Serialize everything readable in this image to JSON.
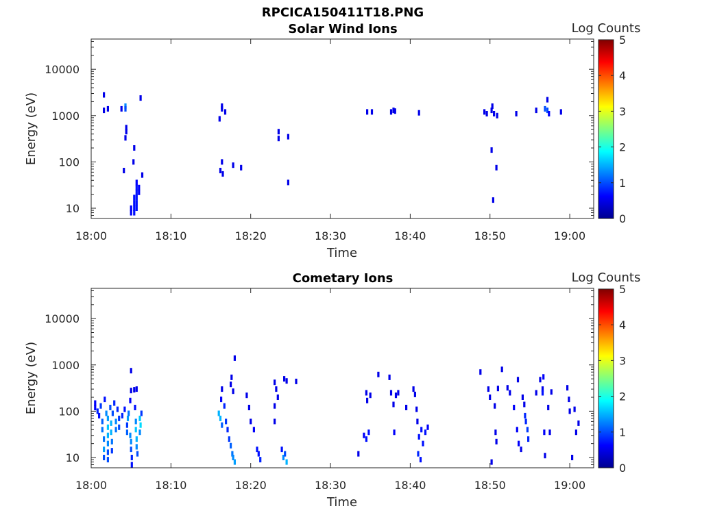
{
  "figure_title": "RPCICA150411T18.PNG",
  "chart_data": [
    {
      "type": "heatmap",
      "title": "Solar Wind Ions",
      "xlabel": "Time",
      "ylabel": "Energy (eV)",
      "colorbar_label": "Log Counts",
      "x_ticks": [
        "18:00",
        "18:10",
        "18:20",
        "18:30",
        "18:40",
        "18:50",
        "19:00"
      ],
      "xlim_minutes": [
        0,
        63
      ],
      "y_scale": "log",
      "ylim": [
        6,
        45000
      ],
      "y_ticks": [
        "10",
        "100",
        "1000",
        "10000"
      ],
      "clim": [
        0,
        5
      ],
      "colorbar_ticks": [
        "0",
        "1",
        "2",
        "3",
        "4",
        "5"
      ],
      "colormap": [
        "#00008f",
        "#0000ff",
        "#00ffff",
        "#ffff00",
        "#ff0000",
        "#800000"
      ],
      "grid": false,
      "points": [
        [
          1.6,
          2800,
          0.5
        ],
        [
          1.6,
          1300,
          0.5
        ],
        [
          2.1,
          1400,
          0.5
        ],
        [
          3.8,
          1400,
          0.5
        ],
        [
          4.3,
          1600,
          1.3
        ],
        [
          4.3,
          1400,
          1.0
        ],
        [
          4.1,
          65,
          0.5
        ],
        [
          4.3,
          330,
          0.5
        ],
        [
          4.4,
          450,
          0.5
        ],
        [
          4.4,
          550,
          0.5
        ],
        [
          5.4,
          200,
          0.5
        ],
        [
          6.2,
          2400,
          0.5
        ],
        [
          5.3,
          100,
          0.5
        ],
        [
          5.0,
          8,
          0.6
        ],
        [
          5.0,
          10,
          0.6
        ],
        [
          5.4,
          8,
          0.7
        ],
        [
          5.4,
          10,
          0.7
        ],
        [
          5.4,
          13,
          0.7
        ],
        [
          5.4,
          17,
          0.7
        ],
        [
          5.7,
          10,
          0.7
        ],
        [
          5.7,
          13,
          0.7
        ],
        [
          5.7,
          17,
          0.7
        ],
        [
          5.7,
          22,
          0.7
        ],
        [
          5.7,
          28,
          0.7
        ],
        [
          5.7,
          36,
          0.6
        ],
        [
          6.0,
          22,
          0.6
        ],
        [
          6.0,
          28,
          0.6
        ],
        [
          6.4,
          52,
          0.5
        ],
        [
          16.1,
          850,
          0.5
        ],
        [
          16.4,
          1400,
          0.5
        ],
        [
          16.4,
          1600,
          0.5
        ],
        [
          16.8,
          1200,
          0.5
        ],
        [
          16.2,
          65,
          0.5
        ],
        [
          16.5,
          55,
          0.5
        ],
        [
          16.4,
          100,
          0.5
        ],
        [
          17.8,
          85,
          0.5
        ],
        [
          18.8,
          75,
          0.5
        ],
        [
          23.5,
          320,
          0.5
        ],
        [
          23.5,
          450,
          0.5
        ],
        [
          24.7,
          350,
          0.5
        ],
        [
          24.7,
          36,
          0.5
        ],
        [
          34.6,
          1200,
          0.5
        ],
        [
          35.2,
          1200,
          0.5
        ],
        [
          37.6,
          1200,
          0.5
        ],
        [
          37.9,
          1300,
          0.5
        ],
        [
          38.1,
          1250,
          0.5
        ],
        [
          41.1,
          1150,
          0.5
        ],
        [
          49.3,
          1200,
          0.5
        ],
        [
          49.6,
          1100,
          0.5
        ],
        [
          50.2,
          1300,
          0.5
        ],
        [
          50.5,
          1100,
          0.5
        ],
        [
          50.9,
          1000,
          0.5
        ],
        [
          50.3,
          1600,
          0.5
        ],
        [
          50.2,
          180,
          0.5
        ],
        [
          50.8,
          75,
          0.5
        ],
        [
          50.4,
          15,
          0.5
        ],
        [
          53.3,
          1100,
          0.5
        ],
        [
          55.8,
          1300,
          0.5
        ],
        [
          56.9,
          1400,
          1.0
        ],
        [
          57.2,
          1300,
          1.0
        ],
        [
          57.4,
          1100,
          0.6
        ],
        [
          57.2,
          2200,
          0.5
        ],
        [
          58.9,
          1200,
          0.5
        ]
      ]
    },
    {
      "type": "heatmap",
      "title": "Cometary Ions",
      "xlabel": "Time",
      "ylabel": "Energy (eV)",
      "colorbar_label": "Log Counts",
      "x_ticks": [
        "18:00",
        "18:10",
        "18:20",
        "18:30",
        "18:40",
        "18:50",
        "19:00"
      ],
      "xlim_minutes": [
        0,
        63
      ],
      "y_scale": "log",
      "ylim": [
        6,
        45000
      ],
      "y_ticks": [
        "10",
        "100",
        "1000",
        "10000"
      ],
      "clim": [
        0,
        5
      ],
      "colorbar_ticks": [
        "0",
        "1",
        "2",
        "3",
        "4",
        "5"
      ],
      "colormap": [
        "#00008f",
        "#0000ff",
        "#00ffff",
        "#ffff00",
        "#ff0000",
        "#800000"
      ],
      "grid": false,
      "points": [
        [
          0.5,
          150,
          0.6
        ],
        [
          0.5,
          120,
          0.6
        ],
        [
          0.8,
          100,
          0.8
        ],
        [
          1.0,
          80,
          0.7
        ],
        [
          1.2,
          130,
          0.9
        ],
        [
          1.4,
          60,
          1.1
        ],
        [
          1.4,
          40,
          1.2
        ],
        [
          1.6,
          25,
          1.2
        ],
        [
          1.6,
          15,
          1.4
        ],
        [
          1.6,
          10,
          1.0
        ],
        [
          1.7,
          180,
          0.7
        ],
        [
          1.9,
          90,
          1.3
        ],
        [
          2.1,
          70,
          1.4
        ],
        [
          2.1,
          45,
          1.6
        ],
        [
          2.1,
          30,
          1.5
        ],
        [
          2.1,
          20,
          1.3
        ],
        [
          2.1,
          13,
          1.0
        ],
        [
          2.1,
          9,
          1.0
        ],
        [
          2.4,
          120,
          1.0
        ],
        [
          2.5,
          55,
          1.5
        ],
        [
          2.5,
          35,
          1.5
        ],
        [
          2.6,
          22,
          1.2
        ],
        [
          2.6,
          14,
          0.9
        ],
        [
          2.7,
          90,
          1.0
        ],
        [
          2.9,
          150,
          0.8
        ],
        [
          3.1,
          60,
          1.3
        ],
        [
          3.1,
          40,
          1.2
        ],
        [
          3.3,
          110,
          0.8
        ],
        [
          3.5,
          70,
          0.9
        ],
        [
          3.5,
          45,
          1.0
        ],
        [
          3.9,
          80,
          0.8
        ],
        [
          4.2,
          110,
          0.7
        ],
        [
          4.5,
          50,
          0.9
        ],
        [
          4.5,
          35,
          1.1
        ],
        [
          4.6,
          70,
          1.4
        ],
        [
          4.7,
          90,
          1.2
        ],
        [
          4.9,
          30,
          1.3
        ],
        [
          5.0,
          22,
          1.3
        ],
        [
          5.0,
          15,
          1.0
        ],
        [
          5.1,
          10,
          0.8
        ],
        [
          5.1,
          7,
          0.7
        ],
        [
          4.9,
          170,
          0.6
        ],
        [
          5.0,
          280,
          0.5
        ],
        [
          5.4,
          290,
          0.5
        ],
        [
          5.7,
          300,
          0.5
        ],
        [
          5.5,
          120,
          0.7
        ],
        [
          5.6,
          60,
          1.3
        ],
        [
          5.6,
          40,
          1.6
        ],
        [
          5.7,
          25,
          1.5
        ],
        [
          5.7,
          17,
          1.3
        ],
        [
          5.8,
          12,
          1.0
        ],
        [
          6.1,
          70,
          1.6
        ],
        [
          6.2,
          50,
          1.7
        ],
        [
          6.1,
          35,
          1.3
        ],
        [
          6.3,
          90,
          0.9
        ],
        [
          5.0,
          750,
          0.5
        ],
        [
          16.0,
          90,
          1.5
        ],
        [
          16.2,
          70,
          1.5
        ],
        [
          16.4,
          50,
          1.1
        ],
        [
          16.3,
          180,
          0.6
        ],
        [
          16.4,
          300,
          0.5
        ],
        [
          16.7,
          130,
          0.8
        ],
        [
          16.9,
          60,
          0.9
        ],
        [
          17.1,
          40,
          0.8
        ],
        [
          17.3,
          25,
          0.9
        ],
        [
          17.5,
          18,
          1.1
        ],
        [
          17.7,
          12,
          1.2
        ],
        [
          17.8,
          10,
          1.3
        ],
        [
          18.0,
          8,
          1.4
        ],
        [
          17.8,
          270,
          0.5
        ],
        [
          17.5,
          380,
          0.5
        ],
        [
          17.6,
          540,
          0.5
        ],
        [
          18.0,
          1400,
          0.5
        ],
        [
          19.5,
          220,
          0.5
        ],
        [
          19.8,
          120,
          0.5
        ],
        [
          20.0,
          60,
          0.5
        ],
        [
          20.4,
          40,
          0.6
        ],
        [
          21.0,
          12,
          0.7
        ],
        [
          21.2,
          9,
          0.8
        ],
        [
          20.8,
          15,
          0.7
        ],
        [
          23.0,
          420,
          0.5
        ],
        [
          23.2,
          300,
          0.5
        ],
        [
          23.4,
          200,
          0.5
        ],
        [
          23.0,
          130,
          0.5
        ],
        [
          23.0,
          60,
          0.5
        ],
        [
          23.9,
          15,
          0.7
        ],
        [
          24.1,
          10,
          1.3
        ],
        [
          24.5,
          8,
          1.5
        ],
        [
          24.3,
          12,
          1.0
        ],
        [
          24.2,
          500,
          0.5
        ],
        [
          24.5,
          450,
          0.5
        ],
        [
          25.7,
          440,
          0.5
        ],
        [
          33.5,
          12,
          0.5
        ],
        [
          34.2,
          30,
          0.6
        ],
        [
          34.5,
          25,
          0.7
        ],
        [
          34.8,
          35,
          0.7
        ],
        [
          34.5,
          250,
          0.5
        ],
        [
          34.6,
          170,
          0.5
        ],
        [
          35.0,
          220,
          0.5
        ],
        [
          36.0,
          620,
          0.5
        ],
        [
          37.4,
          540,
          0.5
        ],
        [
          37.6,
          250,
          0.5
        ],
        [
          37.9,
          140,
          0.5
        ],
        [
          38.2,
          220,
          0.5
        ],
        [
          38.0,
          35,
          0.6
        ],
        [
          38.5,
          250,
          0.5
        ],
        [
          39.5,
          120,
          0.5
        ],
        [
          40.4,
          300,
          0.5
        ],
        [
          40.6,
          230,
          0.5
        ],
        [
          40.9,
          60,
          0.5
        ],
        [
          40.8,
          110,
          0.5
        ],
        [
          41.0,
          12,
          0.8
        ],
        [
          41.1,
          28,
          0.7
        ],
        [
          41.4,
          40,
          0.7
        ],
        [
          41.9,
          35,
          0.7
        ],
        [
          41.6,
          20,
          0.7
        ],
        [
          42.2,
          45,
          0.6
        ],
        [
          41.3,
          9,
          0.7
        ],
        [
          48.8,
          700,
          0.5
        ],
        [
          49.8,
          300,
          0.5
        ],
        [
          50.0,
          200,
          0.5
        ],
        [
          50.2,
          8,
          0.5
        ],
        [
          50.6,
          130,
          0.5
        ],
        [
          50.7,
          35,
          0.5
        ],
        [
          50.8,
          22,
          0.5
        ],
        [
          51.0,
          310,
          0.5
        ],
        [
          51.5,
          800,
          0.5
        ],
        [
          52.2,
          320,
          0.5
        ],
        [
          52.5,
          250,
          0.5
        ],
        [
          53.5,
          480,
          0.5
        ],
        [
          53.0,
          120,
          0.6
        ],
        [
          53.4,
          40,
          0.6
        ],
        [
          53.6,
          20,
          0.6
        ],
        [
          53.9,
          15,
          0.5
        ],
        [
          54.1,
          200,
          0.5
        ],
        [
          54.3,
          140,
          0.5
        ],
        [
          54.4,
          80,
          0.8
        ],
        [
          54.5,
          60,
          0.8
        ],
        [
          54.7,
          40,
          0.9
        ],
        [
          54.8,
          25,
          0.8
        ],
        [
          56.3,
          480,
          0.5
        ],
        [
          56.6,
          300,
          0.5
        ],
        [
          56.6,
          250,
          0.7
        ],
        [
          56.7,
          550,
          0.6
        ],
        [
          56.8,
          35,
          0.6
        ],
        [
          55.8,
          250,
          0.5
        ],
        [
          57.3,
          120,
          0.5
        ],
        [
          57.7,
          260,
          0.5
        ],
        [
          57.5,
          35,
          0.5
        ],
        [
          56.9,
          11,
          0.5
        ],
        [
          59.7,
          320,
          0.5
        ],
        [
          59.9,
          180,
          0.5
        ],
        [
          60.6,
          110,
          0.5
        ],
        [
          60.0,
          100,
          0.5
        ],
        [
          60.3,
          10,
          0.5
        ],
        [
          60.8,
          35,
          0.5
        ],
        [
          61.1,
          55,
          0.5
        ]
      ]
    }
  ]
}
